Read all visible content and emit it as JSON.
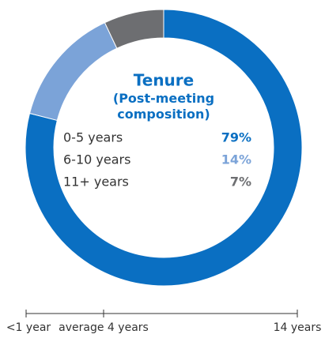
{
  "chart_data": [
    {
      "type": "pie",
      "title": "Tenure",
      "subtitle": "(Post-meeting composition)",
      "categories": [
        "0-5 years",
        "6-10 years",
        "11+ years"
      ],
      "values": [
        79,
        14,
        7
      ],
      "value_labels": [
        "79%",
        "14%",
        "7%"
      ],
      "colors": [
        "#0a6fc2",
        "#7ba3d8",
        "#6d6e71"
      ]
    },
    {
      "type": "scale",
      "xlim": [
        0,
        14
      ],
      "xticks": [
        {
          "value": 0,
          "label": "<1 year"
        },
        {
          "value": 4,
          "label": "average 4 years"
        },
        {
          "value": 14,
          "label": "14 years"
        }
      ]
    }
  ]
}
